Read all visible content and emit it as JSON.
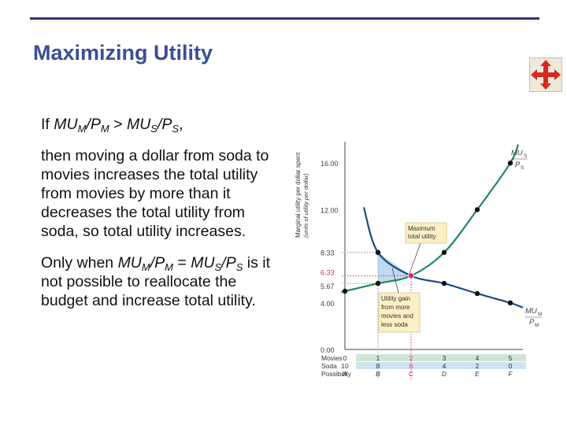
{
  "slide": {
    "title": "Maximizing Utility",
    "p1": {
      "if": "If",
      "mu": "MU",
      "m": "M",
      "slash": "/P",
      "gt": " > ",
      "s": "S",
      "end": ","
    },
    "p2": "then moving a dollar from soda to movies increases the total utility from movies by more than it decreases the total utility from soda, so total utility increases.",
    "p3": {
      "only": "Only when ",
      "mu": "MU",
      "m": "M",
      "slash": "/P",
      "eq": " = ",
      "s": "S",
      "rest": " is it not possible to reallocate the budget and increase total utility."
    }
  },
  "nav": {
    "icon": "move-arrows-icon"
  },
  "colors": {
    "green": "#1f8a55",
    "blue": "#1a4a86",
    "pink": "#d6267a",
    "callout": "#fbf0c4",
    "shade": "#b8d6ee",
    "rowgreen": "#cfe5d5",
    "rowblue": "#cfe3ef"
  },
  "chart_data": {
    "type": "line",
    "ylabel": "Marginal utility per dollar spent",
    "ylabel_units": "(units of utility per dollar)",
    "ylim": [
      0,
      17.5
    ],
    "yticks": [
      "16.00",
      "12.00",
      "8.33",
      "6.33",
      "5.67",
      "4.00",
      "0.00"
    ],
    "x": [
      0,
      1,
      2,
      3,
      4,
      5
    ],
    "series": [
      {
        "name": "MU_S/P_S",
        "label_top": "MU",
        "label_sub": "S",
        "label_den": "P",
        "label_den_sub": "S",
        "values": [
          5,
          5.67,
          6.33,
          8.33,
          12,
          16
        ]
      },
      {
        "name": "MU_M/P_M",
        "label_top": "MU",
        "label_sub": "M",
        "label_den": "P",
        "label_den_sub": "M",
        "values": [
          null,
          8.33,
          6.33,
          5.67,
          4.8,
          4
        ]
      }
    ],
    "table": {
      "rows": [
        {
          "label": "Movies",
          "values": [
            "0",
            "1",
            "2",
            "3",
            "4",
            "5"
          ]
        },
        {
          "label": "Soda",
          "values": [
            "10",
            "8",
            "6",
            "4",
            "2",
            "0"
          ]
        },
        {
          "label": "Possibility",
          "values": [
            "A",
            "B",
            "C",
            "D",
            "E",
            "F"
          ]
        }
      ]
    },
    "annotations": {
      "max": [
        "Maximum",
        "total utility"
      ],
      "gain": [
        "Utility gain",
        "from more",
        "movies and",
        "less soda"
      ]
    }
  }
}
